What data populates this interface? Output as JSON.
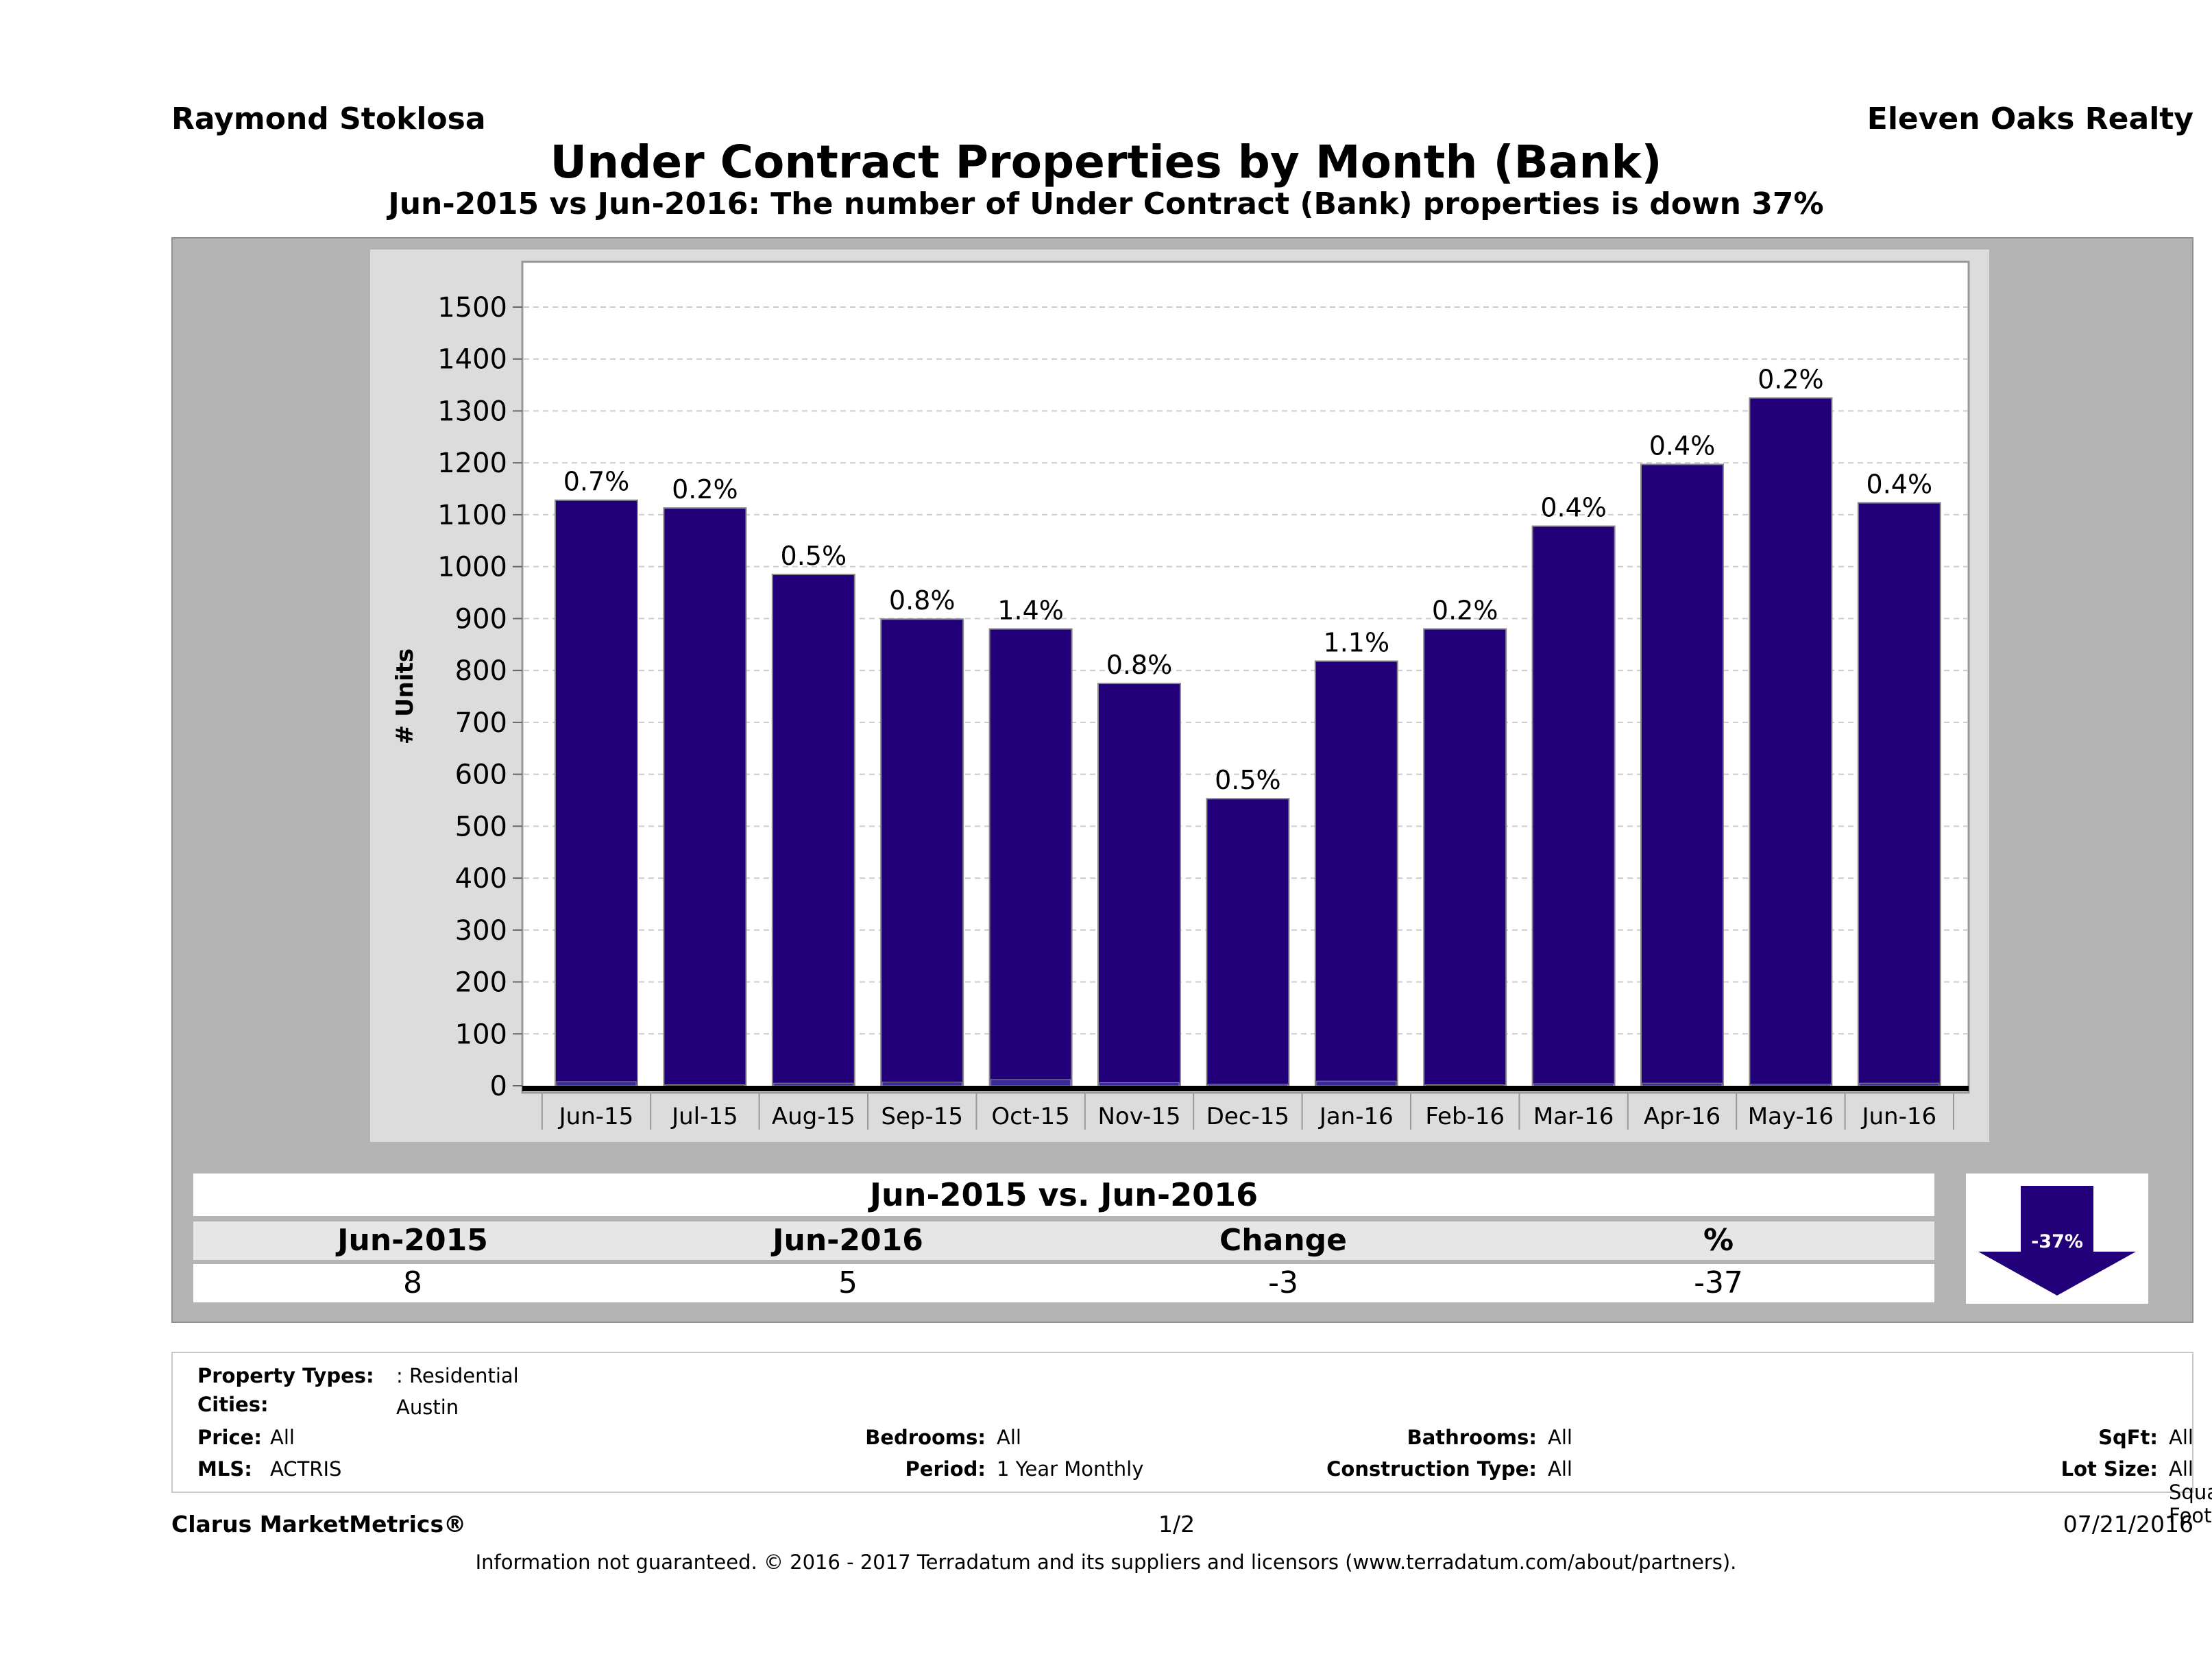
{
  "header": {
    "agent": "Raymond Stoklosa",
    "broker": "Eleven Oaks Realty",
    "title": "Under Contract Properties by Month (Bank)",
    "subtitle": "Jun-2015 vs Jun-2016: The number of Under Contract (Bank)  properties is down 37%"
  },
  "chart_data": {
    "type": "bar",
    "ylabel": "# Units",
    "xlabel": "",
    "ylim": [
      0,
      1500
    ],
    "y_ticks": [
      0,
      100,
      200,
      300,
      400,
      500,
      600,
      700,
      800,
      900,
      1000,
      1100,
      1200,
      1300,
      1400,
      1500
    ],
    "grid": true,
    "categories": [
      "Jun-15",
      "Jul-15",
      "Aug-15",
      "Sep-15",
      "Oct-15",
      "Nov-15",
      "Dec-15",
      "Jan-16",
      "Feb-16",
      "Mar-16",
      "Apr-16",
      "May-16",
      "Jun-16"
    ],
    "values": [
      1128,
      1113,
      985,
      899,
      880,
      775,
      553,
      818,
      880,
      1078,
      1197,
      1325,
      1123
    ],
    "bank_values": [
      8,
      2,
      5,
      7,
      12,
      6,
      3,
      9,
      2,
      4,
      5,
      3,
      5
    ],
    "data_labels": [
      "0.7%",
      "0.2%",
      "0.5%",
      "0.8%",
      "1.4%",
      "0.8%",
      "0.5%",
      "1.1%",
      "0.2%",
      "0.4%",
      "0.4%",
      "0.2%",
      "0.4%"
    ],
    "bar_color": "#22007a"
  },
  "summary": {
    "title": "Jun-2015 vs. Jun-2016",
    "headers": [
      "Jun-2015",
      "Jun-2016",
      "Change",
      "%"
    ],
    "values": [
      "8",
      "5",
      "-3",
      "-37"
    ],
    "arrow_label": "-37%"
  },
  "properties": {
    "property_types_label": "Property Types:",
    "property_types_value": ": Residential",
    "cities_label": "Cities:",
    "cities_value": "Austin",
    "price_label": "Price:",
    "price_value": "All",
    "bedrooms_label": "Bedrooms:",
    "bedrooms_value": "All",
    "bathrooms_label": "Bathrooms:",
    "bathrooms_value": "All",
    "sqft_label": "SqFt:",
    "sqft_value": "All",
    "mls_label": "MLS:",
    "mls_value": "ACTRIS",
    "period_label": "Period:",
    "period_value": "1 Year Monthly",
    "construction_label": "Construction Type:",
    "construction_value": "All",
    "lot_label": "Lot Size:",
    "lot_value": "All Square Footage"
  },
  "footer": {
    "brand": "Clarus MarketMetrics®",
    "page": "1/2",
    "date": "07/21/2016",
    "disclaimer": "Information not guaranteed. © 2016 - 2017 Terradatum and its suppliers and licensors (www.terradatum.com/about/partners)."
  }
}
